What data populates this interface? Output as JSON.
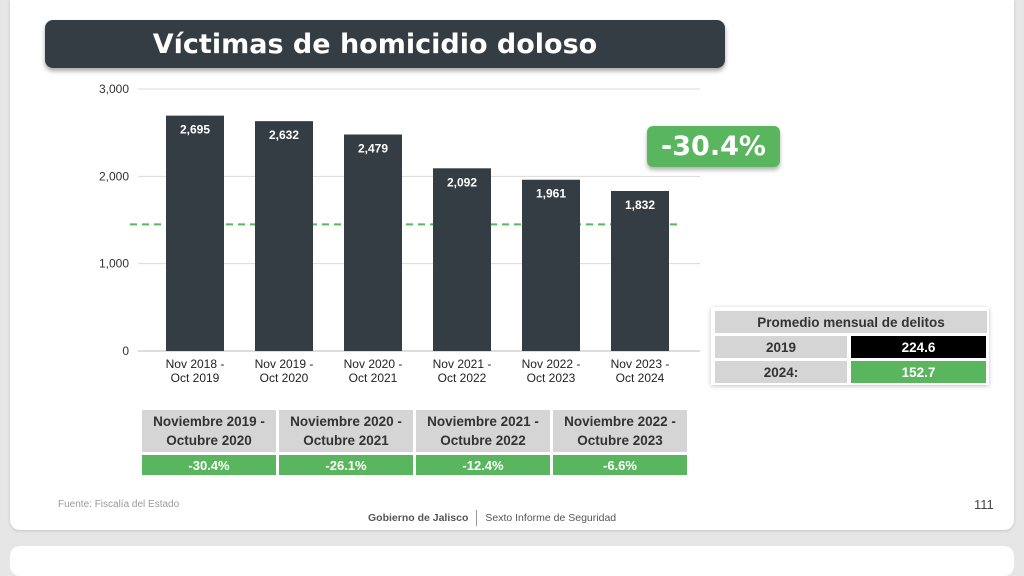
{
  "title": "Víctimas de homicidio doloso",
  "change_badge": "-30.4%",
  "chart_data": {
    "type": "bar",
    "categories": [
      [
        "Nov 2018 -",
        "Oct 2019"
      ],
      [
        "Nov 2019 -",
        "Oct 2020"
      ],
      [
        "Nov 2020 -",
        "Oct 2021"
      ],
      [
        "Nov 2021 -",
        "Oct 2022"
      ],
      [
        "Nov 2022 -",
        "Oct 2023"
      ],
      [
        "Nov 2023 -",
        "Oct 2024"
      ]
    ],
    "values": [
      2695,
      2632,
      2479,
      2092,
      1961,
      1832
    ],
    "value_labels": [
      "2,695",
      "2,632",
      "2,479",
      "2,092",
      "1,961",
      "1,832"
    ],
    "ylim": [
      0,
      3000
    ],
    "yticks": [
      0,
      1000,
      2000,
      3000
    ],
    "ytick_labels": [
      "0",
      "1,000",
      "2,000",
      "3,000"
    ],
    "reference_line": 1450,
    "grid": true,
    "colors": {
      "bar": "#353d44",
      "reference": "#5ab65e",
      "grid": "#d9d9d9"
    }
  },
  "avg_table": {
    "header": "Promedio mensual de delitos",
    "rows": [
      {
        "label": "2019",
        "value": "224.6",
        "color": "#000000"
      },
      {
        "label": "2024:",
        "value": "152.7",
        "color": "#5ab65e"
      }
    ]
  },
  "comparisons": [
    {
      "period": "Noviembre 2019 -\nOctubre 2020",
      "change": "-30.4%"
    },
    {
      "period": "Noviembre 2020 -\nOctubre 2021",
      "change": "-26.1%"
    },
    {
      "period": "Noviembre 2021 -\nOctubre 2022",
      "change": "-12.4%"
    },
    {
      "period": "Noviembre 2022 -\nOctubre 2023",
      "change": "-6.6%"
    }
  ],
  "source": "Fuente: Fiscalía del Estado",
  "footer": {
    "org": "Gobierno de Jalisco",
    "report": "Sexto Informe de Seguridad"
  },
  "page_number": "111",
  "colors": {
    "accent_green": "#5ab65e",
    "dark": "#353d44",
    "header_gray": "#d5d5d5"
  }
}
